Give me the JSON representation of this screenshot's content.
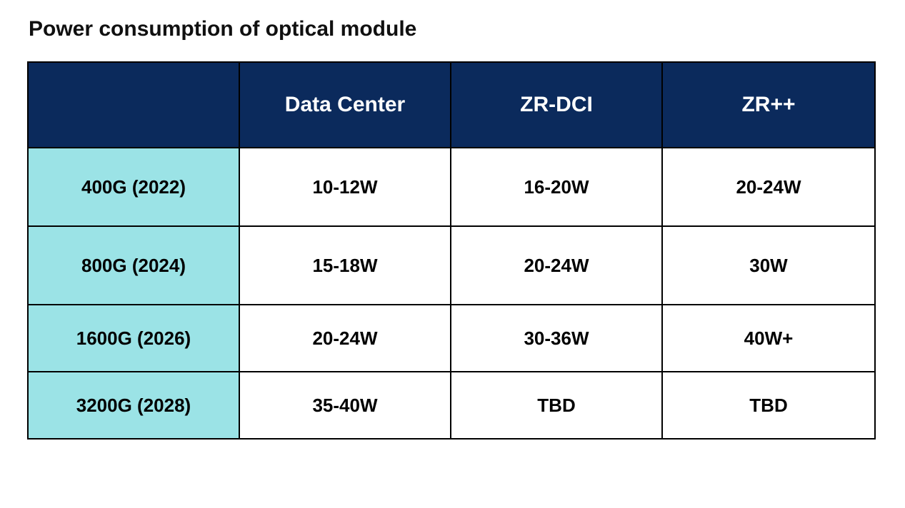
{
  "title": "Power consumption of optical module",
  "table": {
    "type": "table",
    "header_bg": "#0b2a5c",
    "header_fg": "#ffffff",
    "rowhead_bg": "#9be3e6",
    "cell_bg": "#ffffff",
    "border_color": "#000000",
    "columns": [
      {
        "label": ""
      },
      {
        "label": "Data Center"
      },
      {
        "label": "ZR-DCI"
      },
      {
        "label": "ZR++"
      }
    ],
    "rows": [
      {
        "label": "400G (2022)",
        "cells": [
          "10-12W",
          "16-20W",
          "20-24W"
        ]
      },
      {
        "label": "800G (2024)",
        "cells": [
          "15-18W",
          "20-24W",
          "30W"
        ]
      },
      {
        "label": "1600G (2026)",
        "cells": [
          "20-24W",
          "30-36W",
          "40W+"
        ]
      },
      {
        "label": "3200G (2028)",
        "cells": [
          "35-40W",
          "TBD",
          "TBD"
        ]
      }
    ]
  }
}
